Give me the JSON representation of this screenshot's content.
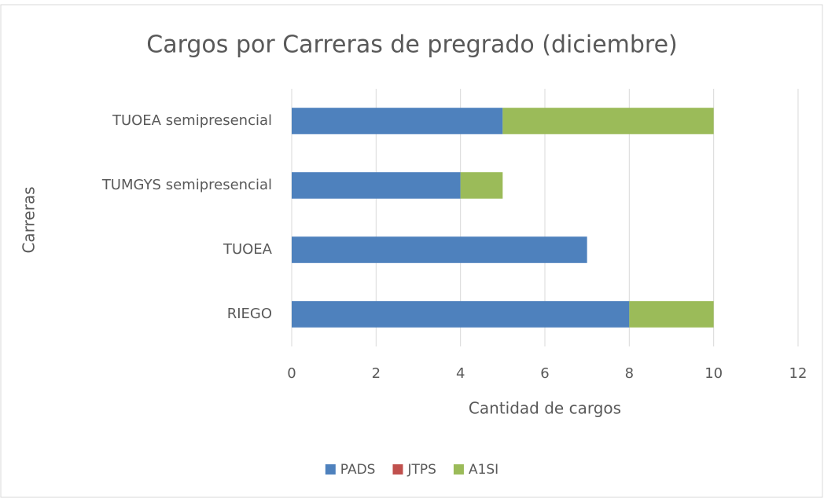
{
  "chart_data": {
    "type": "stacked_barh",
    "title": "Cargos por Carreras de pregrado (diciembre)",
    "xlabel": "Cantidad de cargos",
    "ylabel": "Carreras",
    "categories": [
      "TUOEA semipresencial",
      "TUMGYS semipresencial",
      "TUOEA",
      "RIEGO"
    ],
    "series": [
      {
        "name": "PADS",
        "color": "#4e81bd",
        "values": [
          5,
          4,
          7,
          8
        ]
      },
      {
        "name": "JTPS",
        "color": "#c0504d",
        "values": [
          0,
          0,
          0,
          0
        ]
      },
      {
        "name": "A1SI",
        "color": "#9bbb59",
        "values": [
          5,
          1,
          0,
          2
        ]
      }
    ],
    "xlim": [
      0,
      12
    ],
    "xticks": [
      0,
      2,
      4,
      6,
      8,
      10,
      12
    ],
    "grid": true,
    "legend": "bottom"
  }
}
